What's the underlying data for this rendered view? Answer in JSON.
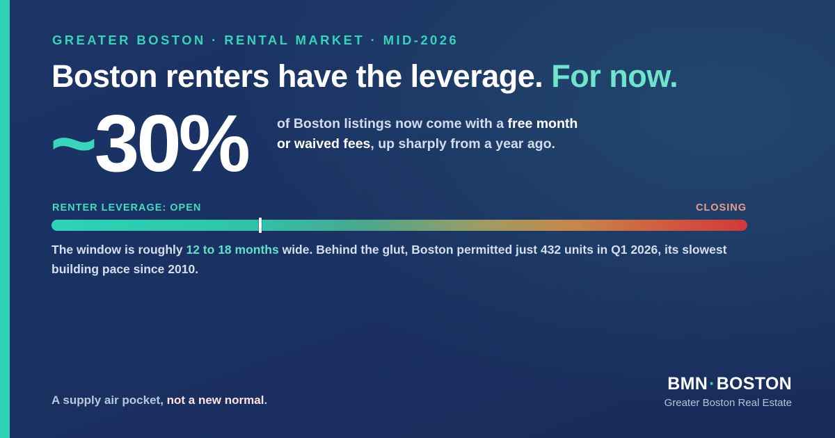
{
  "eyebrow": "GREATER BOSTON · RENTAL MARKET · MID-2026",
  "headline": {
    "main": "Boston renters have the leverage.",
    "accent": "For now."
  },
  "stat": {
    "prefix": "~",
    "value": "30%",
    "desc_before": "of Boston listings now come with a ",
    "desc_highlight": "free month or waived fees",
    "desc_after": ", up sharply from a year ago."
  },
  "meter": {
    "label_left": "RENTER LEVERAGE: OPEN",
    "label_right": "CLOSING",
    "marker_fraction": 0.3,
    "color_start": "#2ed3b7",
    "color_end": "#d1393a"
  },
  "body": {
    "before": "The window is roughly ",
    "highlight": "12 to 18 months",
    "after": " wide. Behind the glut, Boston permitted just 432 units in Q1 2026, its slowest building pace since 2010."
  },
  "footer": {
    "before": "A supply air pocket, ",
    "highlight": "not a new normal",
    "after": "."
  },
  "brand": {
    "name_left": "BMN",
    "separator": "·",
    "name_right": "BOSTON",
    "tagline": "Greater Boston Real Estate"
  },
  "colors": {
    "accent": "#35d3b8",
    "background": "#1b3566"
  }
}
